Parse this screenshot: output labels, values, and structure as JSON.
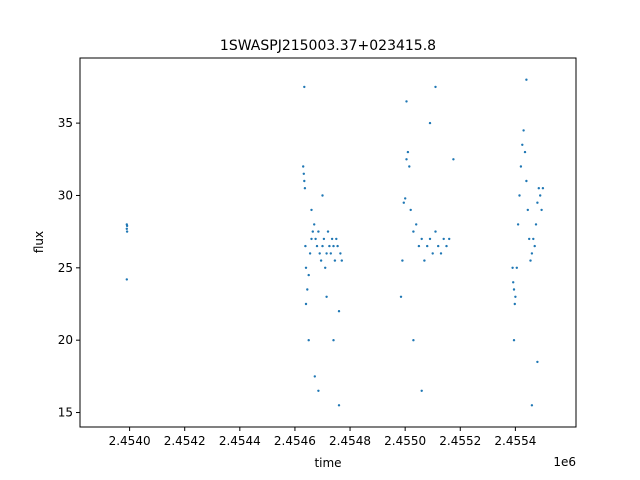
{
  "chart_data": {
    "type": "scatter",
    "title": "1SWASPJ215003.37+023415.8",
    "xlabel": "time",
    "ylabel": "flux",
    "x_offset_label": "1e6",
    "xlim": [
      2453820,
      2455620
    ],
    "ylim": [
      14,
      39.5
    ],
    "x_ticks": [
      2454000,
      2454200,
      2454400,
      2454600,
      2454800,
      2455000,
      2455200,
      2455400
    ],
    "x_tick_labels": [
      "2.4540",
      "2.4542",
      "2.4544",
      "2.4546",
      "2.4548",
      "2.4550",
      "2.4552",
      "2.4554"
    ],
    "y_ticks": [
      15,
      20,
      25,
      30,
      35
    ],
    "y_tick_labels": [
      "15",
      "20",
      "25",
      "30",
      "35"
    ],
    "grid": false,
    "marker_color": "#1f77b4",
    "series": [
      {
        "x": [
          2453990,
          2453990,
          2453991,
          2453991,
          2453990,
          2454630,
          2454632,
          2454634,
          2454636,
          2454638,
          2454640,
          2454645,
          2454650,
          2454655,
          2454660,
          2454665,
          2454670,
          2454675,
          2454680,
          2454685,
          2454690,
          2454695,
          2454700,
          2454705,
          2454710,
          2454715,
          2454720,
          2454725,
          2454730,
          2454735,
          2454740,
          2454745,
          2454750,
          2454755,
          2454760,
          2454765,
          2454770,
          2454634,
          2454640,
          2454650,
          2454660,
          2454672,
          2454685,
          2454700,
          2454715,
          2454740,
          2454760,
          2454985,
          2454990,
          2454995,
          2455000,
          2455005,
          2455010,
          2455015,
          2455020,
          2455030,
          2455040,
          2455050,
          2455060,
          2455070,
          2455080,
          2455090,
          2455100,
          2455110,
          2455120,
          2455130,
          2455140,
          2455150,
          2455160,
          2455175,
          2455005,
          2455030,
          2455060,
          2455090,
          2455110,
          2455390,
          2455392,
          2455395,
          2455398,
          2455400,
          2455405,
          2455410,
          2455415,
          2455420,
          2455425,
          2455430,
          2455435,
          2455440,
          2455445,
          2455450,
          2455455,
          2455460,
          2455465,
          2455470,
          2455475,
          2455480,
          2455485,
          2455490,
          2455495,
          2455500,
          2455395,
          2455440,
          2455460,
          2455480
        ],
        "y": [
          27.7,
          28.0,
          27.5,
          27.9,
          24.2,
          32.0,
          31.5,
          31.0,
          30.5,
          26.5,
          25.0,
          23.5,
          24.5,
          26.0,
          27.0,
          27.5,
          28.0,
          27.0,
          26.5,
          27.5,
          26.0,
          25.5,
          26.5,
          27.0,
          25.0,
          26.0,
          27.5,
          26.5,
          26.0,
          27.0,
          26.5,
          25.5,
          27.0,
          26.5,
          22.0,
          26.0,
          25.5,
          37.5,
          22.5,
          20.0,
          29.0,
          17.5,
          16.5,
          30.0,
          23.0,
          20.0,
          15.5,
          23.0,
          25.5,
          29.5,
          29.8,
          32.5,
          33.0,
          32.0,
          29.0,
          27.5,
          28.0,
          26.5,
          27.0,
          25.5,
          26.5,
          27.0,
          26.0,
          27.5,
          26.5,
          26.0,
          27.0,
          26.5,
          27.0,
          32.5,
          36.5,
          20.0,
          16.5,
          35.0,
          37.5,
          25.0,
          24.0,
          23.5,
          22.5,
          23.0,
          25.0,
          28.0,
          30.0,
          32.0,
          33.5,
          34.5,
          33.0,
          31.0,
          29.0,
          27.0,
          25.5,
          26.0,
          27.0,
          26.5,
          28.0,
          29.5,
          30.5,
          30.0,
          29.0,
          30.5,
          20.0,
          38.0,
          15.5,
          18.5
        ]
      }
    ]
  }
}
